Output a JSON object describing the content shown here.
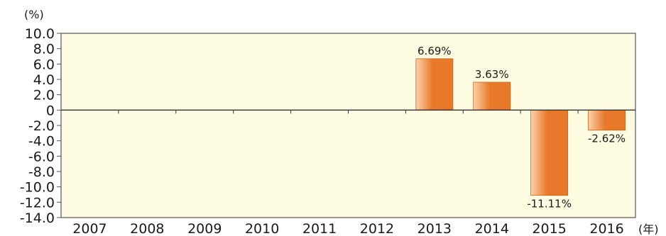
{
  "chart_data": {
    "type": "bar",
    "title": "",
    "ylabel": "(%)",
    "xlabel": "(年)",
    "categories": [
      "2007",
      "2008",
      "2009",
      "2010",
      "2011",
      "2012",
      "2013",
      "2014",
      "2015",
      "2016"
    ],
    "values": [
      null,
      null,
      null,
      null,
      null,
      null,
      6.69,
      3.63,
      -11.11,
      -2.62
    ],
    "data_labels": [
      "",
      "",
      "",
      "",
      "",
      "",
      "6.69%",
      "3.63%",
      "-11.11%",
      "-2.62%"
    ],
    "y_ticks": [
      "10.0",
      "8.0",
      "6.0",
      "4.0",
      "2.0",
      "0",
      "-2.0",
      "-4.0",
      "-6.0",
      "-8.0",
      "-10.0",
      "-12.0",
      "-14.0"
    ],
    "ylim": [
      -14,
      10
    ],
    "grid": false,
    "legend": "none",
    "colors": {
      "plot_background": "#fdfbe0",
      "bar_light": "#fbd3a8",
      "bar_dark": "#e8782a",
      "axis": "#555555"
    }
  }
}
